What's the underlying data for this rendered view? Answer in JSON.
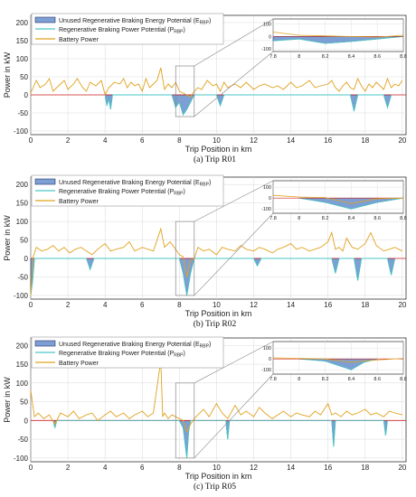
{
  "figure_title": "",
  "legend": {
    "unused": "Unused Regenerative Braking Energy Potential (E",
    "unused_sub": "RBP",
    "unused_close": ")",
    "potential": "Regenerative Braking Power Potential (P",
    "potential_sub": "RBP",
    "potential_close": ")",
    "battery": "Battery Power"
  },
  "colors": {
    "battery": "#e0a21f",
    "potential": "#4ac6c6",
    "unused_fill": "#7d9fd4",
    "unused_stroke": "#27356a",
    "zero_line": "#cc2222",
    "grid": "#d9d9d9",
    "frame": "#333333",
    "inset_box": "#888888"
  },
  "chart_data": [
    {
      "type": "line",
      "caption": "(a) Trip R01",
      "xlabel": "Trip Position in km",
      "ylabel": "Power in kW",
      "xlim": [
        0,
        20.2
      ],
      "ylim": [
        -110,
        220
      ],
      "xticks": [
        0,
        2,
        4,
        6,
        8,
        10,
        12,
        14,
        16,
        18,
        20
      ],
      "yticks": [
        -100,
        -50,
        0,
        50,
        100,
        150,
        200
      ],
      "grid": true,
      "legend_position": "top-left",
      "zoom_range": {
        "x": [
          7.8,
          8.8
        ],
        "y": [
          -60,
          80
        ]
      },
      "inset": {
        "xlim": [
          7.8,
          8.8
        ],
        "ylim": [
          -120,
          140
        ],
        "xticks": [
          7.8,
          8.0,
          8.2,
          8.4,
          8.6,
          8.8
        ],
        "yticks": [
          -100,
          0,
          100
        ],
        "position": "top-right"
      },
      "series": [
        {
          "name": "Battery Power",
          "x": [
            0,
            0.3,
            0.5,
            0.8,
            1.0,
            1.2,
            1.5,
            1.8,
            2.0,
            2.3,
            2.5,
            2.8,
            3.0,
            3.2,
            3.5,
            3.8,
            4.0,
            4.2,
            4.5,
            4.8,
            5.0,
            5.2,
            5.4,
            5.6,
            5.8,
            6.0,
            6.2,
            6.4,
            6.6,
            6.8,
            7.0,
            7.2,
            7.4,
            7.6,
            7.8,
            8.0,
            8.2,
            8.4,
            8.6,
            8.8,
            9.0,
            9.2,
            9.5,
            9.8,
            10.0,
            10.2,
            10.4,
            10.6,
            10.8,
            11.0,
            11.3,
            11.6,
            12.0,
            12.3,
            12.6,
            13.0,
            13.3,
            13.6,
            14.0,
            14.3,
            14.6,
            15.0,
            15.3,
            15.6,
            16.0,
            16.2,
            16.4,
            16.6,
            16.8,
            17.0,
            17.2,
            17.4,
            17.6,
            17.8,
            18.0,
            18.2,
            18.4,
            18.6,
            18.8,
            19.0,
            19.2,
            19.4,
            19.6,
            19.8,
            20.0
          ],
          "y": [
            5,
            40,
            20,
            30,
            45,
            10,
            25,
            40,
            15,
            30,
            45,
            20,
            10,
            35,
            25,
            40,
            0,
            20,
            35,
            30,
            45,
            20,
            35,
            25,
            30,
            10,
            45,
            20,
            30,
            40,
            75,
            15,
            30,
            20,
            35,
            10,
            5,
            0,
            -5,
            10,
            20,
            15,
            40,
            25,
            30,
            10,
            35,
            20,
            25,
            30,
            20,
            35,
            15,
            25,
            30,
            20,
            25,
            15,
            35,
            20,
            25,
            40,
            20,
            25,
            30,
            40,
            20,
            10,
            25,
            35,
            20,
            15,
            45,
            25,
            10,
            30,
            20,
            35,
            25,
            15,
            45,
            20,
            30,
            25,
            40
          ]
        },
        {
          "name": "Regenerative Braking Power Potential (PRBP)",
          "x": [
            4.0,
            4.1,
            4.2,
            4.3,
            4.4,
            7.6,
            7.8,
            8.0,
            8.2,
            8.4,
            8.6,
            8.8,
            10.0,
            10.2,
            10.4,
            17.2,
            17.4,
            17.6,
            19.0,
            19.2,
            19.4
          ],
          "y": [
            0,
            -30,
            -10,
            -40,
            0,
            0,
            -35,
            -20,
            -55,
            -40,
            -20,
            0,
            0,
            -30,
            0,
            0,
            -45,
            0,
            0,
            -35,
            0
          ]
        }
      ]
    },
    {
      "type": "line",
      "caption": "(b) Trip R02",
      "xlabel": "Trip Position in km",
      "ylabel": "Power in kW",
      "xlim": [
        0,
        20.2
      ],
      "ylim": [
        -110,
        220
      ],
      "xticks": [
        0,
        2,
        4,
        6,
        8,
        10,
        12,
        14,
        16,
        18,
        20
      ],
      "yticks": [
        -100,
        -50,
        0,
        50,
        100,
        150,
        200
      ],
      "grid": true,
      "legend_position": "top-left",
      "zoom_range": {
        "x": [
          7.8,
          8.8
        ],
        "y": [
          -100,
          100
        ]
      },
      "inset": {
        "xlim": [
          7.8,
          8.8
        ],
        "ylim": [
          -140,
          160
        ],
        "xticks": [
          7.8,
          8.0,
          8.2,
          8.4,
          8.6,
          8.8
        ],
        "yticks": [
          -100,
          0,
          100
        ],
        "position": "top-right"
      },
      "series": [
        {
          "name": "Battery Power",
          "x": [
            0,
            0.1,
            0.3,
            0.6,
            0.9,
            1.2,
            1.5,
            1.8,
            2.1,
            2.4,
            2.7,
            3.0,
            3.3,
            3.6,
            4.0,
            4.3,
            4.6,
            5.0,
            5.3,
            5.6,
            6.0,
            6.3,
            6.6,
            7.0,
            7.2,
            7.5,
            7.8,
            8.0,
            8.2,
            8.4,
            8.6,
            8.8,
            9.0,
            9.3,
            9.6,
            10.0,
            10.3,
            10.6,
            11.0,
            11.3,
            11.6,
            12.0,
            12.3,
            12.6,
            13.0,
            13.3,
            13.6,
            14.0,
            14.3,
            14.6,
            15.0,
            15.3,
            15.6,
            16.0,
            16.2,
            16.4,
            16.6,
            16.8,
            17.0,
            17.3,
            17.6,
            18.0,
            18.3,
            18.6,
            19.0,
            19.3,
            19.6,
            20.0
          ],
          "y": [
            -100,
            0,
            30,
            20,
            25,
            35,
            20,
            30,
            15,
            25,
            30,
            20,
            10,
            25,
            40,
            20,
            25,
            30,
            45,
            20,
            30,
            25,
            20,
            80,
            30,
            45,
            25,
            10,
            5,
            -50,
            -5,
            0,
            30,
            20,
            25,
            10,
            30,
            25,
            20,
            35,
            25,
            20,
            30,
            25,
            15,
            25,
            30,
            40,
            25,
            30,
            20,
            25,
            30,
            45,
            70,
            25,
            30,
            20,
            55,
            30,
            25,
            40,
            70,
            35,
            20,
            25,
            30,
            20
          ]
        },
        {
          "name": "Regenerative Braking Power Potential (PRBP)",
          "x": [
            0,
            0.1,
            0.2,
            3.0,
            3.2,
            3.4,
            8.0,
            8.2,
            8.4,
            8.6,
            8.8,
            12.0,
            12.2,
            12.4,
            16.2,
            16.4,
            16.6,
            17.4,
            17.6,
            17.8,
            19.2,
            19.4,
            19.6
          ],
          "y": [
            -100,
            -60,
            0,
            0,
            -30,
            0,
            0,
            -40,
            -100,
            -40,
            0,
            0,
            -20,
            0,
            0,
            -40,
            0,
            0,
            -60,
            0,
            0,
            -45,
            0
          ]
        }
      ]
    },
    {
      "type": "line",
      "caption": "(c) Trip R05",
      "xlabel": "Trip Position in km",
      "ylabel": "Power in kW",
      "xlim": [
        0,
        20.2
      ],
      "ylim": [
        -110,
        220
      ],
      "xticks": [
        0,
        2,
        4,
        6,
        8,
        10,
        12,
        14,
        16,
        18,
        20
      ],
      "yticks": [
        -100,
        -50,
        0,
        50,
        100,
        150,
        200
      ],
      "grid": true,
      "legend_position": "top-left",
      "zoom_range": {
        "x": [
          7.8,
          8.8
        ],
        "y": [
          -100,
          100
        ]
      },
      "inset": {
        "xlim": [
          7.8,
          8.8
        ],
        "ylim": [
          -140,
          160
        ],
        "xticks": [
          7.8,
          8.0,
          8.2,
          8.4,
          8.6,
          8.8
        ],
        "yticks": [
          -100,
          0,
          100
        ],
        "position": "top-right"
      },
      "series": [
        {
          "name": "Battery Power",
          "x": [
            0,
            0.2,
            0.4,
            0.7,
            1.0,
            1.3,
            1.6,
            2.0,
            2.3,
            2.6,
            3.0,
            3.3,
            3.6,
            4.0,
            4.3,
            4.6,
            5.0,
            5.3,
            5.6,
            6.0,
            6.3,
            6.6,
            7.0,
            7.1,
            7.2,
            7.4,
            7.6,
            7.8,
            8.0,
            8.2,
            8.4,
            8.6,
            8.8,
            9.0,
            9.3,
            9.6,
            10.0,
            10.3,
            10.6,
            11.0,
            11.3,
            11.6,
            12.0,
            12.3,
            12.6,
            13.0,
            13.3,
            13.6,
            14.0,
            14.3,
            14.6,
            15.0,
            15.3,
            15.6,
            16.0,
            16.2,
            16.4,
            16.7,
            17.0,
            17.3,
            17.6,
            18.0,
            18.3,
            18.6,
            19.0,
            19.3,
            19.6,
            20.0
          ],
          "y": [
            80,
            10,
            20,
            5,
            15,
            -10,
            20,
            10,
            25,
            5,
            15,
            20,
            0,
            15,
            25,
            10,
            20,
            5,
            15,
            25,
            10,
            20,
            160,
            10,
            20,
            5,
            15,
            10,
            5,
            0,
            -30,
            -10,
            5,
            15,
            30,
            10,
            45,
            20,
            5,
            40,
            15,
            25,
            10,
            35,
            20,
            5,
            15,
            25,
            10,
            20,
            15,
            10,
            25,
            15,
            45,
            15,
            20,
            10,
            25,
            15,
            20,
            30,
            15,
            20,
            10,
            25,
            20,
            15
          ]
        },
        {
          "name": "Regenerative Braking Power Potential (PRBP)",
          "x": [
            1.2,
            1.3,
            1.4,
            8.0,
            8.2,
            8.4,
            8.5,
            8.6,
            10.5,
            10.6,
            10.7,
            16.2,
            16.3,
            16.4,
            19.0,
            19.1,
            19.2
          ],
          "y": [
            0,
            -20,
            0,
            0,
            -20,
            -100,
            -30,
            0,
            0,
            -50,
            0,
            0,
            -70,
            0,
            0,
            -40,
            0
          ]
        }
      ]
    }
  ]
}
